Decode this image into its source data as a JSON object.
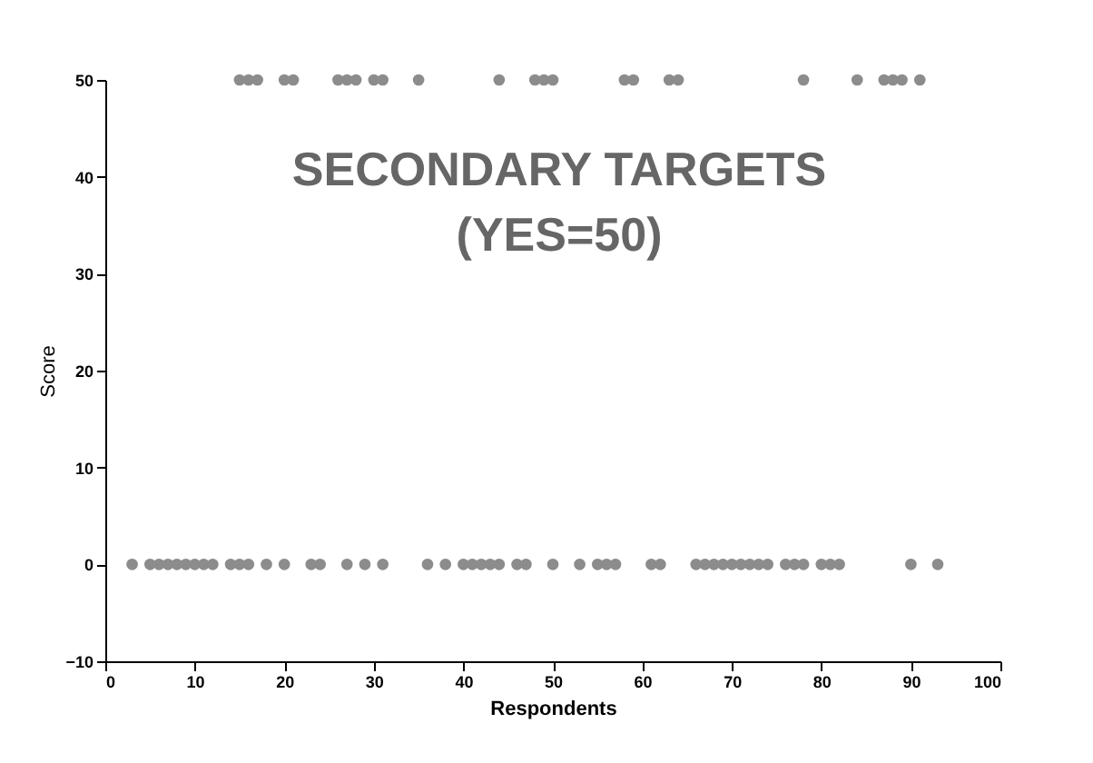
{
  "chart_data": {
    "type": "scatter",
    "xlabel": "Respondents",
    "ylabel": "Score",
    "annotations": [
      "SECONDARY TARGETS",
      "(YES=50)"
    ],
    "x": [
      15,
      16,
      17,
      20,
      21,
      26,
      27,
      28,
      30,
      31,
      35,
      44,
      48,
      49,
      50,
      58,
      59,
      63,
      64,
      78,
      84,
      87,
      88,
      89,
      91,
      3,
      5,
      6,
      7,
      8,
      9,
      10,
      11,
      12,
      14,
      15,
      16,
      18,
      20,
      23,
      24,
      27,
      29,
      31,
      36,
      38,
      40,
      41,
      42,
      43,
      44,
      46,
      47,
      50,
      53,
      55,
      56,
      57,
      61,
      62,
      66,
      67,
      68,
      69,
      70,
      71,
      72,
      73,
      74,
      76,
      77,
      78,
      80,
      81,
      82,
      90,
      93
    ],
    "values": [
      50,
      50,
      50,
      50,
      50,
      50,
      50,
      50,
      50,
      50,
      50,
      50,
      50,
      50,
      50,
      50,
      50,
      50,
      50,
      50,
      50,
      50,
      50,
      50,
      50,
      0,
      0,
      0,
      0,
      0,
      0,
      0,
      0,
      0,
      0,
      0,
      0,
      0,
      0,
      0,
      0,
      0,
      0,
      0,
      0,
      0,
      0,
      0,
      0,
      0,
      0,
      0,
      0,
      0,
      0,
      0,
      0,
      0,
      0,
      0,
      0,
      0,
      0,
      0,
      0,
      0,
      0,
      0,
      0,
      0,
      0,
      0,
      0,
      0,
      0,
      0,
      0
    ],
    "color": "#8c8c8c",
    "marker": "circle",
    "grid": false,
    "xlim": [
      0,
      100
    ],
    "xticks": [
      0,
      10,
      20,
      30,
      40,
      50,
      60,
      70,
      80,
      90,
      100
    ],
    "ylim": [
      -10,
      50
    ],
    "yticks": [
      -10,
      0,
      10,
      20,
      30,
      40,
      50
    ]
  }
}
